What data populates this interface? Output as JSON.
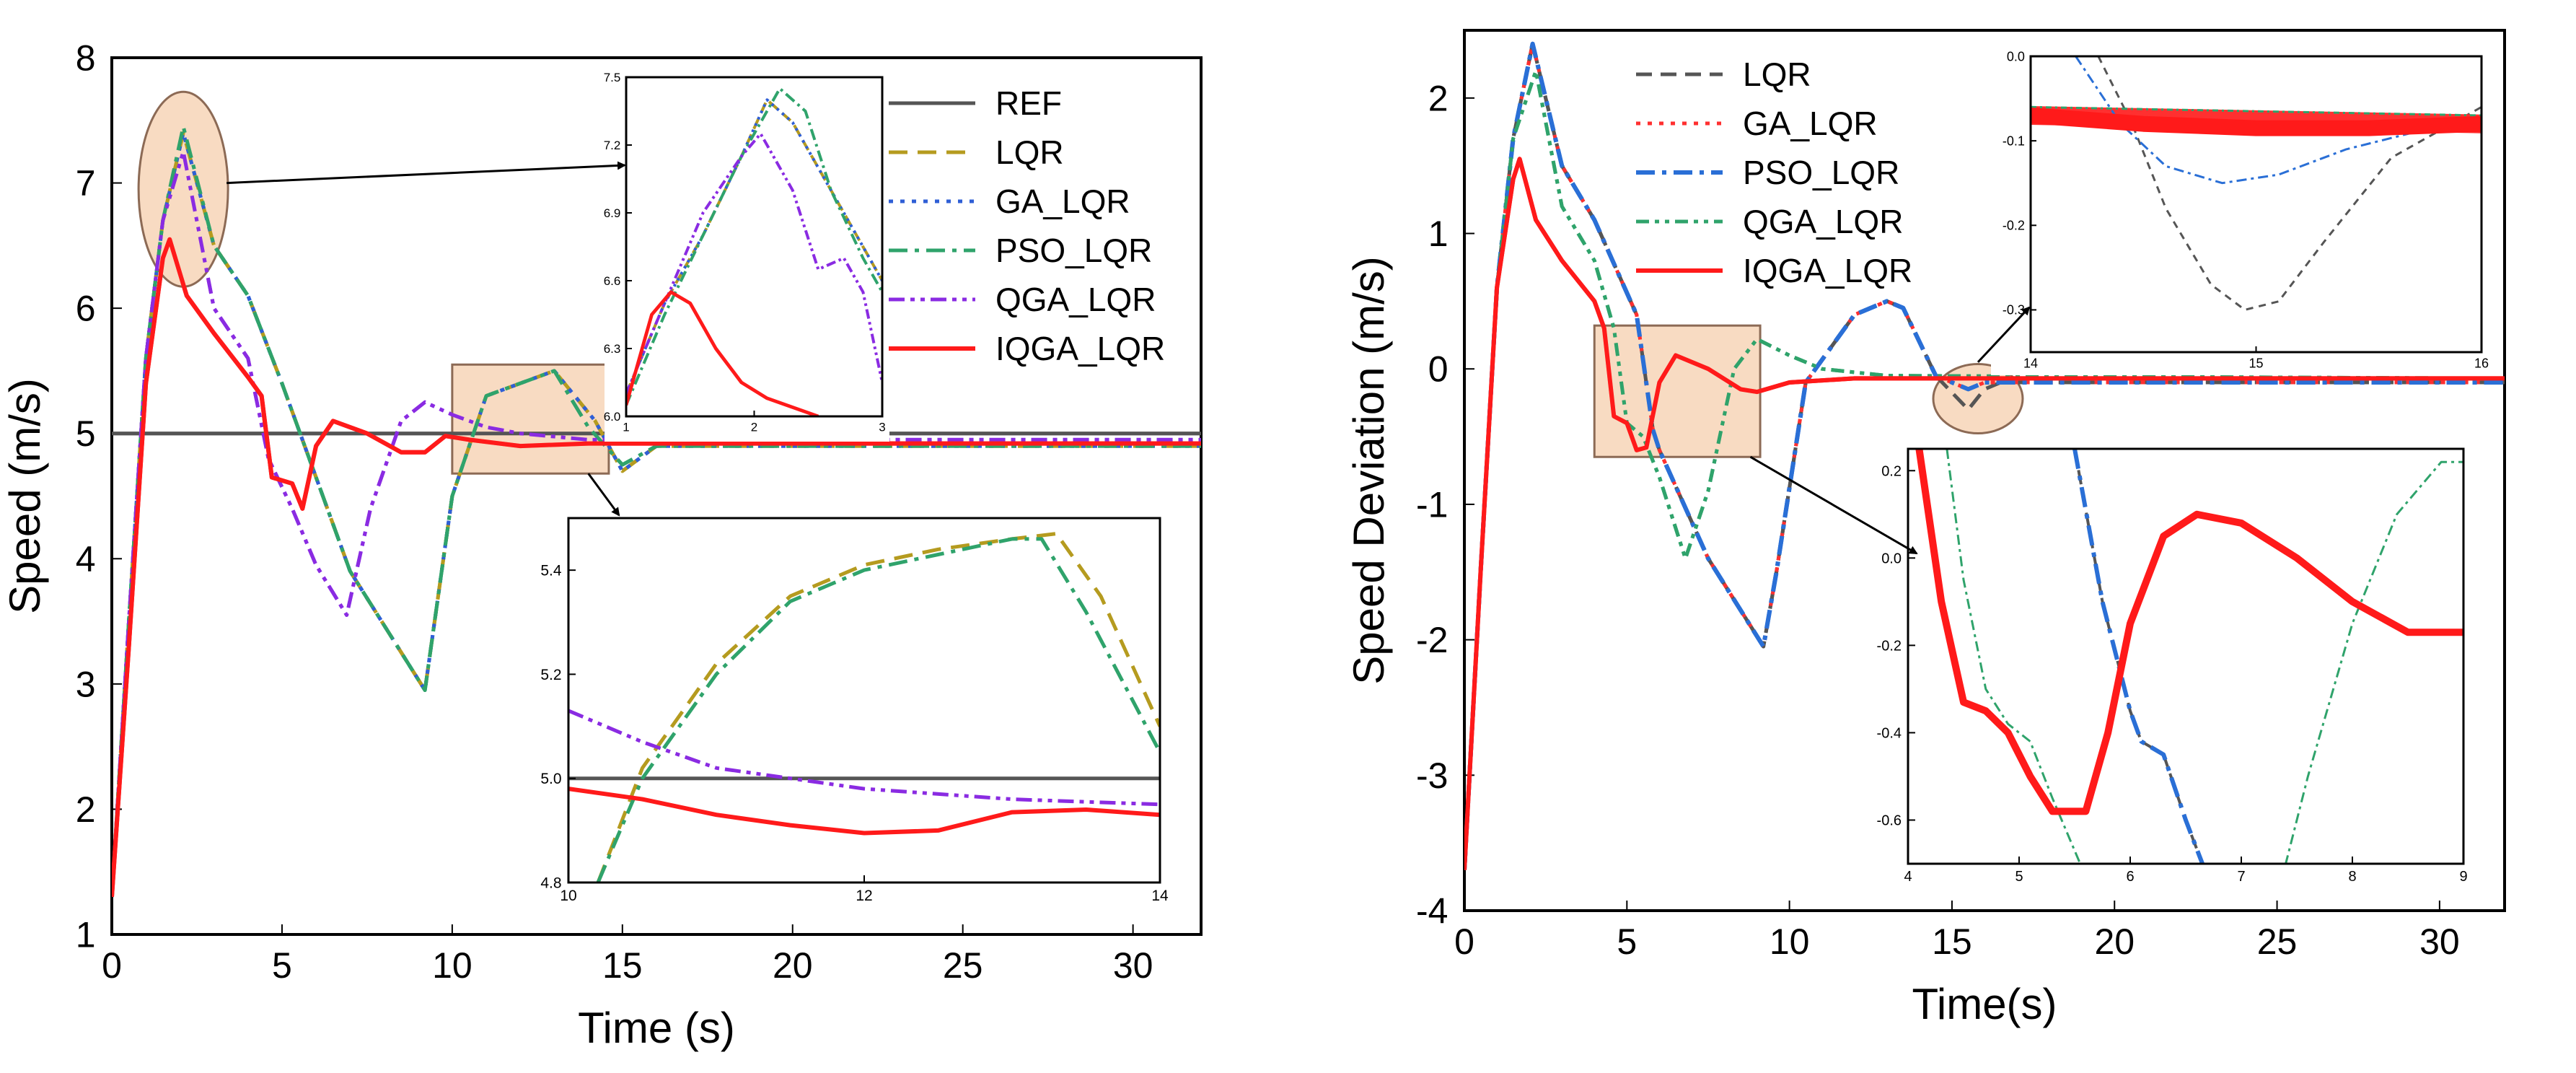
{
  "colors": {
    "REF": "#555555",
    "LQR": "#b59b1f",
    "GA_LQR": "#2f5fd6",
    "PSO_LQR": "#2fa36b",
    "QGA_LQR": "#8a2be2",
    "IQGA_LQR": "#ff1a1a",
    "right_LQR": "#555555",
    "right_GA_LQR": "#ff3030",
    "right_PSO_LQR": "#2a6fd6",
    "right_QGA_LQR": "#2fa36b",
    "highlight_fill": "#f6cfae",
    "highlight_stroke": "#8c6a55"
  },
  "chart_data": [
    {
      "id": "left-main",
      "type": "line",
      "xlabel": "Time (s)",
      "ylabel": "Speed (m/s)",
      "xlim": [
        0,
        32
      ],
      "ylim": [
        1,
        8
      ],
      "xticks": [
        "0",
        "5",
        "10",
        "15",
        "20",
        "25",
        "30"
      ],
      "yticks": [
        "1",
        "2",
        "3",
        "4",
        "5",
        "6",
        "7",
        "8"
      ],
      "legend": [
        "REF",
        "LQR",
        "GA_LQR",
        "PSO_LQR",
        "QGA_LQR",
        "IQGA_LQR"
      ],
      "legend_position": "right",
      "series": [
        {
          "name": "REF",
          "x": [
            0,
            32
          ],
          "y": [
            5,
            5
          ]
        },
        {
          "name": "LQR",
          "x": [
            0,
            0.5,
            1.0,
            1.5,
            2.1,
            3.0,
            4.0,
            5.0,
            7.0,
            9.2,
            10.0,
            11.0,
            13.0,
            14.2,
            15.0,
            16.0,
            32
          ],
          "y": [
            1.3,
            3.5,
            5.6,
            6.7,
            7.4,
            6.5,
            6.1,
            5.4,
            3.9,
            2.95,
            4.5,
            5.3,
            5.5,
            5.1,
            4.7,
            4.9,
            4.9
          ]
        },
        {
          "name": "GA_LQR",
          "x": [
            0,
            0.5,
            1.0,
            1.5,
            2.1,
            3.0,
            4.0,
            5.0,
            7.0,
            9.2,
            10.0,
            11.0,
            13.0,
            14.2,
            15.0,
            16.0,
            32
          ],
          "y": [
            1.3,
            3.5,
            5.6,
            6.7,
            7.4,
            6.5,
            6.1,
            5.4,
            3.9,
            2.95,
            4.5,
            5.3,
            5.5,
            5.1,
            4.7,
            4.9,
            4.9
          ]
        },
        {
          "name": "PSO_LQR",
          "x": [
            0,
            0.5,
            1.0,
            1.5,
            2.1,
            3.0,
            4.0,
            5.0,
            7.0,
            9.2,
            10.0,
            11.0,
            13.0,
            14.0,
            15.0,
            16.0,
            32
          ],
          "y": [
            1.3,
            3.5,
            5.6,
            6.7,
            7.45,
            6.5,
            6.1,
            5.4,
            3.9,
            2.95,
            4.5,
            5.3,
            5.5,
            5.05,
            4.75,
            4.9,
            4.9
          ]
        },
        {
          "name": "QGA_LQR",
          "x": [
            0,
            0.5,
            1.0,
            1.5,
            2.1,
            3.0,
            4.0,
            4.6,
            5.3,
            6.0,
            6.9,
            7.6,
            8.5,
            9.2,
            10.0,
            11.0,
            12.0,
            14.0,
            32
          ],
          "y": [
            1.3,
            3.5,
            5.6,
            6.7,
            7.25,
            6.0,
            5.6,
            4.8,
            4.4,
            3.95,
            3.55,
            4.4,
            5.1,
            5.25,
            5.15,
            5.05,
            5.0,
            4.95,
            4.95
          ]
        },
        {
          "name": "IQGA_LQR",
          "x": [
            0,
            0.5,
            1.0,
            1.5,
            1.7,
            2.2,
            3.0,
            4.0,
            4.4,
            4.7,
            5.3,
            5.6,
            6.0,
            6.5,
            7.5,
            8.5,
            9.2,
            9.8,
            10.5,
            12.0,
            14.0,
            32
          ],
          "y": [
            1.3,
            3.3,
            5.4,
            6.4,
            6.55,
            6.1,
            5.8,
            5.45,
            5.3,
            4.65,
            4.6,
            4.4,
            4.9,
            5.1,
            5.0,
            4.85,
            4.85,
            4.98,
            4.95,
            4.9,
            4.92,
            4.92
          ]
        }
      ]
    },
    {
      "id": "left-inset-top",
      "type": "line",
      "xlim": [
        1,
        3
      ],
      "ylim": [
        6.0,
        7.5
      ],
      "xticks": [
        "1",
        "2",
        "3"
      ],
      "yticks": [
        "6.0",
        "6.3",
        "6.6",
        "6.9",
        "7.2",
        "7.5"
      ],
      "series": [
        {
          "name": "LQR",
          "x": [
            1,
            1.3,
            1.6,
            1.9,
            2.1,
            2.3,
            2.6,
            2.85,
            3.0
          ],
          "y": [
            6.1,
            6.5,
            6.8,
            7.15,
            7.4,
            7.3,
            7.0,
            6.75,
            6.6
          ]
        },
        {
          "name": "GA_LQR",
          "x": [
            1,
            1.3,
            1.6,
            1.9,
            2.1,
            2.3,
            2.6,
            2.85,
            3.0
          ],
          "y": [
            6.1,
            6.5,
            6.8,
            7.15,
            7.4,
            7.3,
            7.0,
            6.75,
            6.6
          ]
        },
        {
          "name": "PSO_LQR",
          "x": [
            1,
            1.3,
            1.6,
            1.9,
            2.2,
            2.4,
            2.6,
            2.85,
            3.0
          ],
          "y": [
            6.05,
            6.45,
            6.8,
            7.15,
            7.45,
            7.35,
            7.0,
            6.7,
            6.55
          ]
        },
        {
          "name": "QGA_LQR",
          "x": [
            1,
            1.3,
            1.6,
            1.9,
            2.05,
            2.3,
            2.5,
            2.7,
            2.85,
            3.0
          ],
          "y": [
            6.1,
            6.5,
            6.9,
            7.15,
            7.25,
            7.0,
            6.65,
            6.7,
            6.55,
            6.15
          ]
        },
        {
          "name": "IQGA_LQR",
          "x": [
            1,
            1.2,
            1.35,
            1.5,
            1.7,
            1.9,
            2.1,
            2.5
          ],
          "y": [
            6.05,
            6.45,
            6.55,
            6.5,
            6.3,
            6.15,
            6.08,
            6.0
          ]
        }
      ]
    },
    {
      "id": "left-inset-bottom",
      "type": "line",
      "xlim": [
        10,
        14
      ],
      "ylim": [
        4.8,
        5.5
      ],
      "xticks": [
        "10",
        "12",
        "14"
      ],
      "yticks": [
        "4.8",
        "5.0",
        "5.2",
        "5.4"
      ],
      "series": [
        {
          "name": "REF",
          "x": [
            10,
            14
          ],
          "y": [
            5.0,
            5.0
          ]
        },
        {
          "name": "LQR",
          "x": [
            10.2,
            10.5,
            11.0,
            11.5,
            12.0,
            12.5,
            13.0,
            13.3,
            13.6,
            14.0
          ],
          "y": [
            4.8,
            5.02,
            5.22,
            5.35,
            5.41,
            5.44,
            5.46,
            5.47,
            5.35,
            5.1
          ]
        },
        {
          "name": "PSO_LQR",
          "x": [
            10.2,
            10.5,
            11.0,
            11.5,
            12.0,
            12.5,
            13.0,
            13.2,
            13.5,
            14.0
          ],
          "y": [
            4.8,
            5.0,
            5.2,
            5.34,
            5.4,
            5.43,
            5.46,
            5.46,
            5.32,
            5.05
          ]
        },
        {
          "name": "QGA_LQR",
          "x": [
            10,
            10.5,
            11.0,
            11.5,
            12.0,
            13.0,
            14.0
          ],
          "y": [
            5.13,
            5.07,
            5.02,
            5.0,
            4.98,
            4.96,
            4.95
          ]
        },
        {
          "name": "IQGA_LQR",
          "x": [
            10,
            10.5,
            11.0,
            11.5,
            12.0,
            12.5,
            13.0,
            13.5,
            14.0
          ],
          "y": [
            4.98,
            4.96,
            4.93,
            4.91,
            4.895,
            4.9,
            4.935,
            4.94,
            4.93
          ]
        }
      ]
    },
    {
      "id": "right-main",
      "type": "line",
      "xlabel": "Time(s)",
      "ylabel": "Speed Deviation (m/s)",
      "xlim": [
        0,
        32
      ],
      "ylim": [
        -4,
        2.5
      ],
      "xticks": [
        "0",
        "5",
        "10",
        "15",
        "20",
        "25",
        "30"
      ],
      "yticks": [
        "-4",
        "-3",
        "-2",
        "-1",
        "0",
        "1",
        "2"
      ],
      "legend": [
        "LQR",
        "GA_LQR",
        "PSO_LQR",
        "QGA_LQR",
        "IQGA_LQR"
      ],
      "legend_position": "top-left",
      "series": [
        {
          "name": "LQR",
          "x": [
            0,
            0.5,
            1.0,
            1.5,
            2.1,
            3.0,
            4.0,
            5.3,
            5.8,
            6.0,
            7.5,
            9.2,
            9.6,
            10.5,
            12.0,
            13.0,
            13.5,
            14.5,
            15.5,
            16.0,
            16.5,
            32
          ],
          "y": [
            -3.7,
            -1.5,
            0.6,
            1.7,
            2.4,
            1.5,
            1.1,
            0.4,
            -0.45,
            -0.6,
            -1.4,
            -2.05,
            -1.5,
            -0.1,
            0.4,
            0.5,
            0.45,
            -0.05,
            -0.3,
            -0.15,
            -0.1,
            -0.1
          ]
        },
        {
          "name": "GA_LQR",
          "x": [
            0,
            0.5,
            1.0,
            1.5,
            2.1,
            3.0,
            4.0,
            5.3,
            5.8,
            6.0,
            7.5,
            9.2,
            9.6,
            10.5,
            12.0,
            13.0,
            13.5,
            14.5,
            15.5,
            16.0,
            16.5,
            32
          ],
          "y": [
            -3.7,
            -1.5,
            0.6,
            1.7,
            2.4,
            1.5,
            1.1,
            0.4,
            -0.45,
            -0.6,
            -1.4,
            -2.05,
            -1.5,
            -0.1,
            0.4,
            0.5,
            0.45,
            -0.05,
            -0.15,
            -0.1,
            -0.1,
            -0.1
          ]
        },
        {
          "name": "PSO_LQR",
          "x": [
            0,
            0.5,
            1.0,
            1.5,
            2.1,
            3.0,
            4.0,
            5.3,
            5.8,
            6.0,
            7.5,
            9.2,
            9.6,
            10.5,
            12.0,
            13.0,
            13.5,
            14.5,
            15.5,
            16.0,
            16.5,
            32
          ],
          "y": [
            -3.7,
            -1.5,
            0.6,
            1.7,
            2.4,
            1.5,
            1.1,
            0.4,
            -0.45,
            -0.6,
            -1.4,
            -2.05,
            -1.5,
            -0.1,
            0.4,
            0.5,
            0.45,
            -0.05,
            -0.15,
            -0.1,
            -0.1,
            -0.1
          ]
        },
        {
          "name": "QGA_LQR",
          "x": [
            0,
            0.5,
            1.0,
            1.5,
            2.2,
            3.0,
            4.0,
            4.6,
            5.0,
            5.5,
            6.0,
            6.8,
            7.5,
            8.3,
            9.0,
            10.0,
            11.0,
            13.0,
            32
          ],
          "y": [
            -3.7,
            -1.5,
            0.6,
            1.7,
            2.2,
            1.2,
            0.8,
            0.3,
            -0.4,
            -0.5,
            -0.8,
            -1.4,
            -0.9,
            0.0,
            0.22,
            0.1,
            0.0,
            -0.05,
            -0.07
          ]
        },
        {
          "name": "IQGA_LQR",
          "x": [
            0,
            0.5,
            1.0,
            1.5,
            1.7,
            2.2,
            3.0,
            4.0,
            4.3,
            4.6,
            5.0,
            5.3,
            5.6,
            6.0,
            6.5,
            7.5,
            8.5,
            9.0,
            10.0,
            12.0,
            32
          ],
          "y": [
            -3.7,
            -1.5,
            0.6,
            1.4,
            1.55,
            1.1,
            0.8,
            0.5,
            0.3,
            -0.35,
            -0.4,
            -0.6,
            -0.58,
            -0.1,
            0.1,
            0.0,
            -0.15,
            -0.17,
            -0.1,
            -0.07,
            -0.07
          ]
        }
      ]
    },
    {
      "id": "right-inset-top",
      "type": "line",
      "xlim": [
        14,
        16
      ],
      "ylim": [
        -0.35,
        0.0
      ],
      "xticks": [
        "14",
        "15",
        "16"
      ],
      "yticks": [
        "0.0",
        "-0.1",
        "-0.2",
        "-0.3"
      ],
      "series": [
        {
          "name": "LQR",
          "x": [
            14.3,
            14.45,
            14.6,
            14.8,
            14.95,
            15.1,
            15.3,
            15.6,
            16.0
          ],
          "y": [
            0.0,
            -0.08,
            -0.18,
            -0.27,
            -0.3,
            -0.29,
            -0.22,
            -0.12,
            -0.06
          ]
        },
        {
          "name": "GA_LQR",
          "x": [
            14,
            16
          ],
          "y": [
            -0.07,
            -0.08
          ]
        },
        {
          "name": "PSO_LQR",
          "x": [
            14.2,
            14.4,
            14.6,
            14.85,
            15.1,
            15.4,
            15.7,
            16.0
          ],
          "y": [
            0.0,
            -0.08,
            -0.13,
            -0.15,
            -0.14,
            -0.11,
            -0.09,
            -0.08
          ]
        },
        {
          "name": "QGA_LQR",
          "x": [
            14,
            16
          ],
          "y": [
            -0.06,
            -0.07
          ]
        },
        {
          "name": "IQGA_LQR",
          "x": [
            14,
            14.5,
            15.0,
            15.5,
            16.0
          ],
          "y": [
            -0.07,
            -0.08,
            -0.085,
            -0.085,
            -0.08
          ]
        }
      ]
    },
    {
      "id": "right-inset-bottom",
      "type": "line",
      "xlim": [
        4,
        9
      ],
      "ylim": [
        -0.7,
        0.25
      ],
      "xticks": [
        "4",
        "5",
        "6",
        "7",
        "8",
        "9"
      ],
      "yticks": [
        "0.2",
        "0.0",
        "-0.2",
        "-0.4",
        "-0.6"
      ],
      "series": [
        {
          "name": "LQR",
          "x": [
            5.5,
            5.75,
            5.9,
            6.0,
            6.1,
            6.3,
            6.5,
            6.65
          ],
          "y": [
            0.25,
            -0.1,
            -0.25,
            -0.35,
            -0.42,
            -0.45,
            -0.6,
            -0.7
          ]
        },
        {
          "name": "PSO_LQR",
          "x": [
            5.5,
            5.75,
            5.9,
            6.0,
            6.1,
            6.3,
            6.5,
            6.65
          ],
          "y": [
            0.25,
            -0.1,
            -0.25,
            -0.35,
            -0.42,
            -0.45,
            -0.6,
            -0.7
          ]
        },
        {
          "name": "QGA_LQR",
          "x": [
            4.35,
            4.5,
            4.7,
            4.9,
            5.1,
            5.3,
            5.55,
            7.4,
            7.6,
            8.0,
            8.4,
            8.8,
            9.0
          ],
          "y": [
            0.25,
            -0.05,
            -0.3,
            -0.38,
            -0.42,
            -0.55,
            -0.7,
            -0.7,
            -0.5,
            -0.15,
            0.1,
            0.22,
            0.22
          ]
        },
        {
          "name": "IQGA_LQR",
          "x": [
            4.1,
            4.3,
            4.5,
            4.7,
            4.9,
            5.1,
            5.3,
            5.6,
            5.8,
            6.0,
            6.3,
            6.6,
            7.0,
            7.5,
            8.0,
            8.5,
            9.0
          ],
          "y": [
            0.25,
            -0.1,
            -0.33,
            -0.35,
            -0.4,
            -0.5,
            -0.58,
            -0.58,
            -0.4,
            -0.15,
            0.05,
            0.1,
            0.08,
            0.0,
            -0.1,
            -0.17,
            -0.17
          ]
        }
      ]
    }
  ]
}
